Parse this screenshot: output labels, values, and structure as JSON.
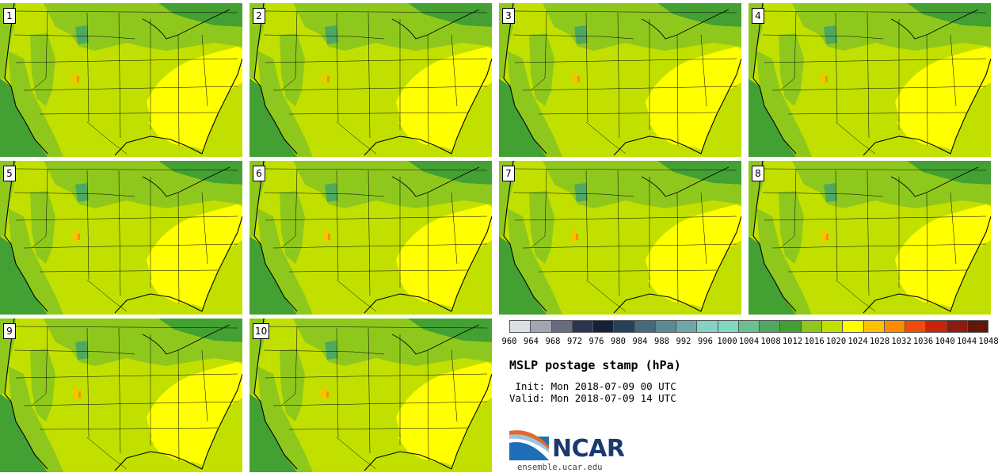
{
  "panels": [
    {
      "label": "1"
    },
    {
      "label": "2"
    },
    {
      "label": "3"
    },
    {
      "label": "4"
    },
    {
      "label": "5"
    },
    {
      "label": "6"
    },
    {
      "label": "7"
    },
    {
      "label": "8"
    },
    {
      "label": "9"
    },
    {
      "label": "10"
    }
  ],
  "legend": {
    "title": "MSLP postage stamp (hPa)",
    "init": " Init: Mon 2018-07-09 00 UTC",
    "valid": "Valid: Mon 2018-07-09 14 UTC",
    "ticks": [
      "960",
      "964",
      "968",
      "972",
      "976",
      "980",
      "984",
      "988",
      "992",
      "996",
      "1000",
      "1004",
      "1008",
      "1012",
      "1016",
      "1020",
      "1024",
      "1028",
      "1032",
      "1036",
      "1040",
      "1044",
      "1048"
    ],
    "colors": [
      "#dcdfe4",
      "#a3a5b1",
      "#686c80",
      "#2b3450",
      "#15203a",
      "#27405a",
      "#456a7c",
      "#5a8a94",
      "#6fa6aa",
      "#86d0c4",
      "#80d8c0",
      "#6cc090",
      "#4ea860",
      "#43a032",
      "#8fc81c",
      "#c2e000",
      "#ffff00",
      "#ffc000",
      "#ff8c00",
      "#f04c0c",
      "#c82408",
      "#8c1c10",
      "#601808"
    ]
  },
  "logo": {
    "text": "NCAR",
    "site": "ensemble.ucar.edu"
  }
}
